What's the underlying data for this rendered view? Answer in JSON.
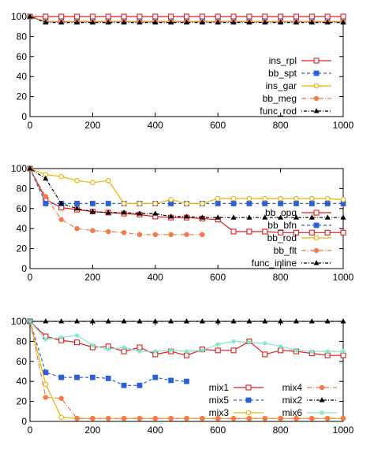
{
  "colors": {
    "red": "#e41a1c",
    "blue": "#2b5fd9",
    "orange_y": "#f0b000",
    "salmon": "#f47a4c",
    "black": "#000000",
    "aqua": "#7fe5cf"
  },
  "chart_data": [
    {
      "type": "line",
      "xlim": [
        0,
        1000
      ],
      "ylim": [
        0,
        100
      ],
      "xticks": [
        "0",
        "200",
        "400",
        "600",
        "800",
        "1000"
      ],
      "yticks": [
        "0",
        "20",
        "40",
        "60",
        "80",
        "100"
      ],
      "grid": false,
      "legend_position": "right",
      "series": [
        {
          "name": "ins_rpl",
          "color_key": "red",
          "marker": "square-open",
          "dash": "solid",
          "x": [
            0,
            50,
            100,
            150,
            200,
            250,
            300,
            350,
            400,
            450,
            500,
            550,
            600,
            650,
            700,
            750,
            800,
            850,
            900,
            950,
            1000
          ],
          "y": [
            100,
            100,
            100,
            100,
            100,
            100,
            100,
            100,
            100,
            100,
            100,
            100,
            100,
            100,
            100,
            100,
            100,
            100,
            100,
            100,
            100
          ]
        },
        {
          "name": "bb_spt",
          "color_key": "blue",
          "marker": "square-filled",
          "dash": "dashed",
          "x": [
            0,
            50,
            100,
            150,
            200,
            250,
            300,
            350,
            400,
            450,
            500,
            550,
            600,
            650,
            700,
            750,
            800,
            850,
            900,
            950,
            1000
          ],
          "y": [
            100,
            95,
            95,
            95,
            95,
            95,
            95,
            95,
            95,
            95,
            95,
            95,
            95,
            95,
            95,
            95,
            95,
            95,
            95,
            95,
            95
          ]
        },
        {
          "name": "ins_gar",
          "color_key": "orange_y",
          "marker": "circle-open",
          "dash": "solid",
          "x": [
            0,
            50,
            100,
            150,
            200,
            250,
            300,
            350,
            400,
            450,
            500,
            550,
            600,
            650,
            700,
            750,
            800,
            850,
            900,
            950,
            1000
          ],
          "y": [
            100,
            95,
            95,
            95,
            95,
            95,
            95,
            95,
            95,
            95,
            95,
            95,
            95,
            95,
            95,
            95,
            95,
            95,
            95,
            95,
            95
          ]
        },
        {
          "name": "bb_meg",
          "color_key": "salmon",
          "marker": "circle-filled",
          "dash": "dashdot",
          "x": [
            0,
            50,
            100,
            150,
            200,
            250,
            300,
            350,
            400,
            450,
            500,
            550,
            600,
            650,
            700,
            750,
            800,
            850,
            900,
            950,
            1000
          ],
          "y": [
            100,
            95,
            95,
            95,
            95,
            95,
            95,
            95,
            95,
            95,
            95,
            95,
            95,
            95,
            95,
            95,
            95,
            95,
            95,
            95,
            95
          ]
        },
        {
          "name": "func_rod",
          "color_key": "black",
          "marker": "triangle",
          "dash": "dotdash",
          "x": [
            0,
            50,
            100,
            150,
            200,
            250,
            300,
            350,
            400,
            450,
            500,
            550,
            600,
            650,
            700,
            750,
            800,
            850,
            900,
            950,
            1000
          ],
          "y": [
            100,
            94,
            94,
            94,
            94,
            94,
            94,
            94,
            94,
            94,
            94,
            94,
            94,
            94,
            94,
            94,
            94,
            94,
            94,
            94,
            94
          ]
        }
      ]
    },
    {
      "type": "line",
      "xlim": [
        0,
        1000
      ],
      "ylim": [
        0,
        100
      ],
      "xticks": [
        "0",
        "200",
        "400",
        "600",
        "800",
        "1000"
      ],
      "yticks": [
        "0",
        "20",
        "40",
        "60",
        "80",
        "100"
      ],
      "grid": false,
      "legend_position": "right",
      "series": [
        {
          "name": "bb_opq",
          "color_key": "red",
          "marker": "square-open",
          "dash": "solid",
          "x": [
            0,
            50,
            100,
            150,
            200,
            250,
            300,
            350,
            400,
            450,
            500,
            550,
            600,
            650,
            700,
            750,
            800,
            850,
            900,
            950,
            1000
          ],
          "y": [
            100,
            69,
            61,
            59,
            57,
            56,
            55,
            54,
            52,
            51,
            51,
            50,
            49,
            37,
            37,
            37,
            36,
            36,
            36,
            36,
            36
          ]
        },
        {
          "name": "bb_bfn",
          "color_key": "blue",
          "marker": "square-filled",
          "dash": "dashed",
          "x": [
            0,
            50,
            100,
            150,
            200,
            250,
            300,
            350,
            400,
            450,
            500,
            550,
            600,
            650,
            700,
            750,
            800,
            850,
            900,
            950,
            1000
          ],
          "y": [
            100,
            65,
            65,
            65,
            65,
            65,
            65,
            65,
            65,
            65,
            65,
            65,
            65,
            65,
            65,
            65,
            65,
            65,
            65,
            65,
            65
          ]
        },
        {
          "name": "bb_rod",
          "color_key": "orange_y",
          "marker": "circle-open",
          "dash": "solid",
          "x": [
            0,
            50,
            100,
            150,
            200,
            250,
            300,
            350,
            400,
            450,
            500,
            550,
            600,
            650,
            700,
            750,
            800,
            850,
            900,
            950,
            1000
          ],
          "y": [
            100,
            94,
            92,
            88,
            86,
            88,
            65,
            65,
            65,
            69,
            65,
            65,
            70,
            70,
            70,
            70,
            70,
            70,
            70,
            70,
            69
          ]
        },
        {
          "name": "bb_flt",
          "color_key": "salmon",
          "marker": "circle-filled",
          "dash": "dashdot",
          "x": [
            0,
            50,
            100,
            150,
            200,
            250,
            300,
            350,
            400,
            450,
            500,
            550
          ],
          "y": [
            100,
            72,
            49,
            40,
            38,
            37,
            36,
            34,
            34,
            34,
            34,
            34
          ]
        },
        {
          "name": "func_inline",
          "color_key": "black",
          "marker": "triangle",
          "dash": "dotdash",
          "x": [
            0,
            50,
            100,
            150,
            200,
            250,
            300,
            350,
            400,
            450,
            500,
            550,
            600,
            650,
            700,
            750,
            800,
            850,
            900,
            950,
            1000
          ],
          "y": [
            100,
            90,
            65,
            60,
            57,
            56,
            56,
            55,
            55,
            52,
            52,
            51,
            51,
            51,
            51,
            51,
            51,
            51,
            51,
            51,
            51
          ]
        }
      ]
    },
    {
      "type": "line",
      "xlim": [
        0,
        1000
      ],
      "ylim": [
        0,
        100
      ],
      "xticks": [
        "0",
        "200",
        "400",
        "600",
        "800",
        "1000"
      ],
      "yticks": [
        "0",
        "20",
        "40",
        "60",
        "80",
        "100"
      ],
      "grid": false,
      "legend_position": "bottom-right",
      "series": [
        {
          "name": "mix1",
          "color_key": "red",
          "marker": "square-open",
          "dash": "solid",
          "x": [
            0,
            50,
            100,
            150,
            200,
            250,
            300,
            350,
            400,
            450,
            500,
            550,
            600,
            650,
            700,
            750,
            800,
            850,
            900,
            950,
            1000
          ],
          "y": [
            100,
            85,
            81,
            79,
            74,
            75,
            70,
            74,
            67,
            70,
            66,
            72,
            71,
            71,
            80,
            67,
            71,
            70,
            68,
            66,
            66
          ]
        },
        {
          "name": "mix5",
          "color_key": "blue",
          "marker": "square-filled",
          "dash": "dashed",
          "x": [
            0,
            50,
            100,
            150,
            200,
            250,
            300,
            350,
            400,
            450,
            500
          ],
          "y": [
            100,
            49,
            44,
            44,
            44,
            43,
            36,
            36,
            44,
            41,
            40
          ]
        },
        {
          "name": "mix3",
          "color_key": "orange_y",
          "marker": "circle-open",
          "dash": "solid",
          "x": [
            0,
            50,
            100,
            150,
            200,
            250,
            300,
            350,
            400,
            450,
            500,
            550,
            600,
            650,
            700,
            750,
            800,
            850,
            900,
            950,
            1000
          ],
          "y": [
            100,
            37,
            4,
            3,
            3,
            3,
            3,
            3,
            3,
            3,
            3,
            3,
            3,
            3,
            3,
            3,
            3,
            3,
            3,
            3,
            3
          ]
        },
        {
          "name": "mix4",
          "color_key": "salmon",
          "marker": "circle-filled",
          "dash": "dashdot",
          "x": [
            0,
            50,
            100,
            150,
            200,
            250,
            300,
            350,
            400,
            450,
            500,
            550,
            600,
            650,
            700,
            750,
            800,
            850,
            900,
            950,
            1000
          ],
          "y": [
            100,
            24,
            23,
            3,
            3,
            3,
            3,
            3,
            3,
            3,
            3,
            3,
            3,
            3,
            3,
            3,
            3,
            3,
            3,
            3,
            3
          ]
        },
        {
          "name": "mix2",
          "color_key": "black",
          "marker": "triangle",
          "dash": "dotdash",
          "x": [
            0,
            50,
            100,
            150,
            200,
            250,
            300,
            350,
            400,
            450,
            500,
            550,
            600,
            650,
            700,
            750,
            800,
            850,
            900,
            950,
            1000
          ],
          "y": [
            100,
            100,
            100,
            100,
            100,
            100,
            100,
            100,
            100,
            100,
            100,
            100,
            100,
            100,
            100,
            100,
            100,
            100,
            100,
            100,
            100
          ]
        },
        {
          "name": "mix6",
          "color_key": "aqua",
          "marker": "star",
          "dash": "solid",
          "x": [
            0,
            50,
            100,
            150,
            200,
            250,
            300,
            350,
            400,
            450,
            500,
            550,
            600,
            650,
            700,
            750,
            800,
            850,
            900,
            950,
            1000
          ],
          "y": [
            100,
            82,
            84,
            86,
            76,
            72,
            74,
            70,
            70,
            71,
            70,
            71,
            77,
            80,
            79,
            78,
            75,
            71,
            70,
            70,
            70
          ]
        }
      ]
    }
  ]
}
